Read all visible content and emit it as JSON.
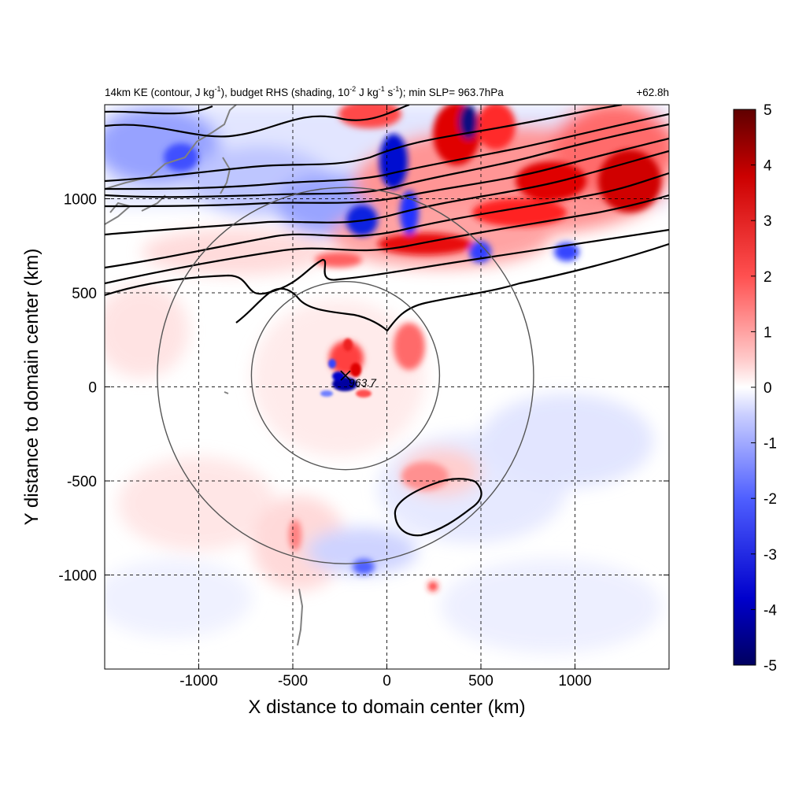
{
  "chart_data": {
    "type": "heatmap",
    "title_parts": {
      "a": "14km KE (contour, J kg",
      "a_sup": "-1",
      "b": "), budget RHS (shading, 10",
      "b_sup": "-2",
      "c": " J kg",
      "c_sup": "-1",
      "d": " s",
      "d_sup": "-1",
      "e": "); min SLP= 963.7hPa"
    },
    "time_label": "+62.8h",
    "xlabel": "X distance to domain center (km)",
    "ylabel": "Y distance to domain center (km)",
    "xlim": [
      -1500,
      1500
    ],
    "ylim": [
      -1500,
      1500
    ],
    "xticks": [
      -1000,
      -500,
      0,
      500,
      1000
    ],
    "yticks": [
      -1000,
      -500,
      0,
      500,
      1000
    ],
    "colorbar": {
      "range": [
        -5,
        5
      ],
      "ticks": [
        -5,
        -4,
        -3,
        -2,
        -1,
        0,
        1,
        2,
        3,
        4,
        5
      ],
      "colormap": [
        "#00005f",
        "#0000ff",
        "#ffffff",
        "#ff0000",
        "#5f0000"
      ]
    },
    "storm_center": {
      "x": -220,
      "y": 60,
      "label": "963.7"
    },
    "range_rings_km": [
      500,
      1000
    ],
    "grid": true,
    "grid_style": "dashed",
    "colors": {
      "positive": "#d7191c",
      "negative": "#1a3fd6",
      "contour": "#000000",
      "coastline": "#808080",
      "ring": "#555555"
    }
  }
}
